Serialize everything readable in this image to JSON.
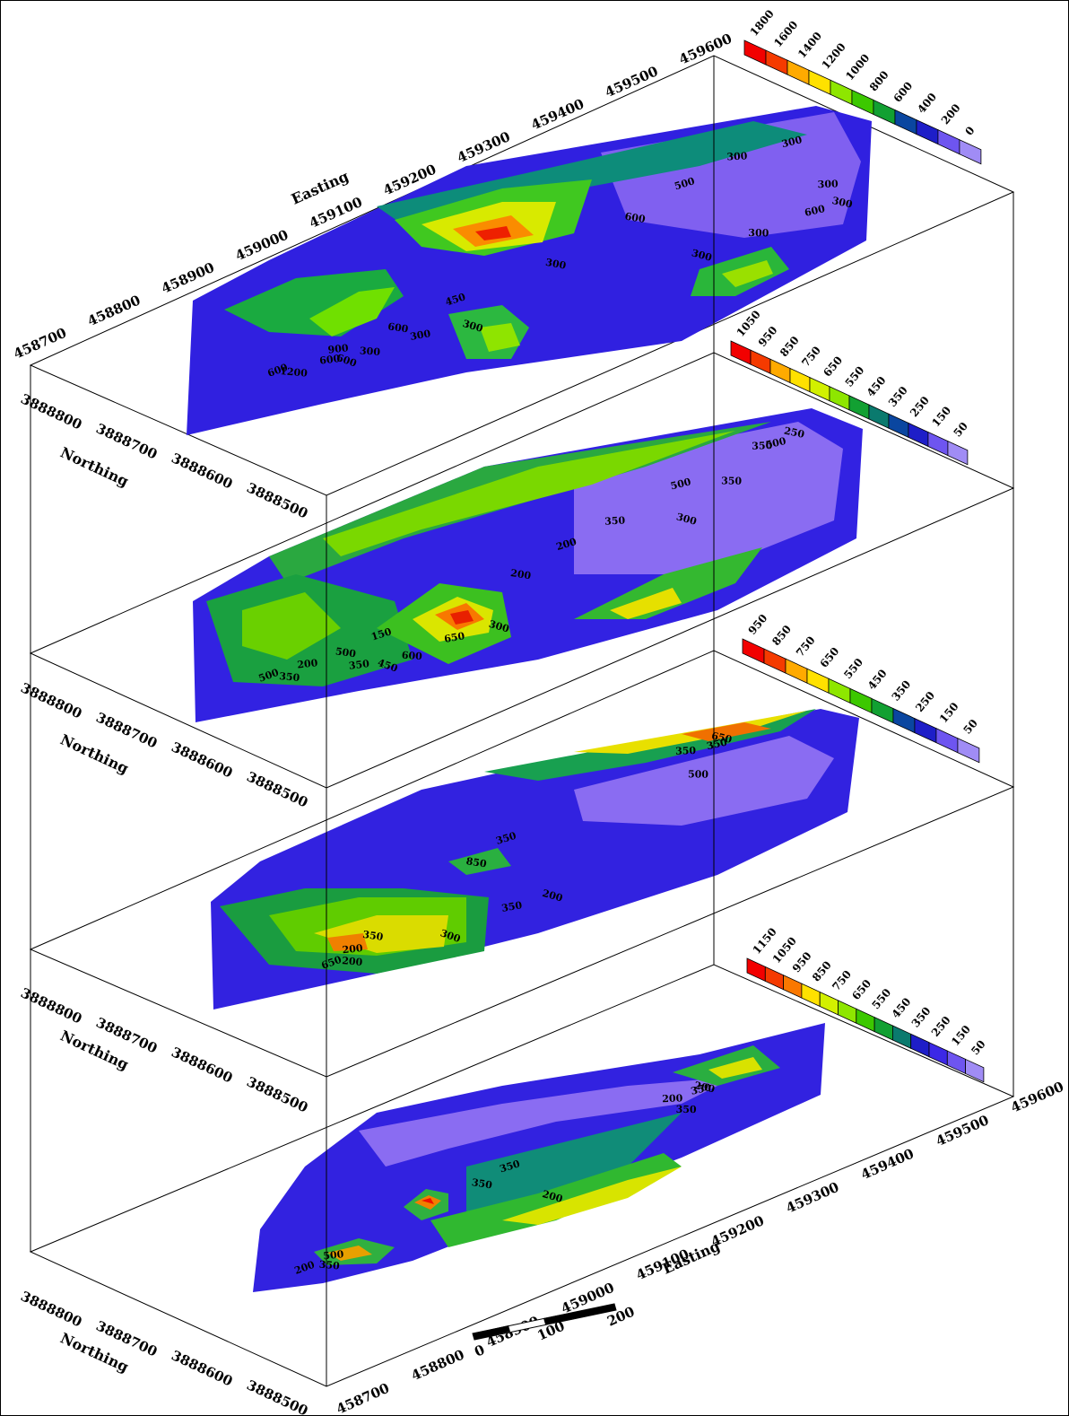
{
  "easting_ticks": [
    "458700",
    "458800",
    "458900",
    "459000",
    "459100",
    "459200",
    "459300",
    "459400",
    "459500",
    "459600"
  ],
  "northing_ticks": [
    "3888800",
    "3888700",
    "3888600",
    "3888500"
  ],
  "labels": {
    "easting": "Easting",
    "northing": "Northing"
  },
  "scale_bar": {
    "labels": [
      "0",
      "100",
      "200"
    ]
  },
  "colorbars": [
    {
      "labels": [
        "1800",
        "1600",
        "1400",
        "1200",
        "1000",
        "800",
        "600",
        "400",
        "200",
        "0"
      ]
    },
    {
      "labels": [
        "1050",
        "950",
        "850",
        "750",
        "650",
        "550",
        "450",
        "350",
        "250",
        "150",
        "50"
      ]
    },
    {
      "labels": [
        "950",
        "850",
        "750",
        "650",
        "550",
        "450",
        "350",
        "250",
        "150",
        "50"
      ]
    },
    {
      "labels": [
        "1150",
        "1050",
        "950",
        "850",
        "750",
        "650",
        "550",
        "450",
        "350",
        "250",
        "150",
        "50"
      ]
    }
  ],
  "colors": {
    "ramp": [
      "#f20000",
      "#f53a00",
      "#fa7800",
      "#ffaa00",
      "#ffe100",
      "#d2f000",
      "#8ee600",
      "#3cc800",
      "#12a032",
      "#0a7a6e",
      "#0a46a0",
      "#1e1ec8",
      "#3c28e6",
      "#6e55f0",
      "#a08cf5"
    ]
  },
  "slices": [
    {
      "contour_labels": [
        "600",
        "600",
        "300",
        "600",
        "300",
        "1200",
        "900",
        "500",
        "300",
        "300",
        "300",
        "600",
        "600",
        "300",
        "300",
        "300",
        "300",
        "600",
        "450",
        "300"
      ]
    },
    {
      "contour_labels": [
        "500",
        "200",
        "350",
        "500",
        "300",
        "350",
        "200",
        "200",
        "250",
        "350",
        "650",
        "450",
        "500",
        "350",
        "500",
        "300",
        "600",
        "350",
        "150"
      ]
    },
    {
      "contour_labels": [
        "650",
        "850",
        "350",
        "350",
        "200",
        "200",
        "200",
        "350",
        "650",
        "500",
        "350",
        "300",
        "350"
      ]
    },
    {
      "contour_labels": [
        "200",
        "350",
        "200",
        "350",
        "200",
        "350",
        "500",
        "350",
        "200",
        "350"
      ]
    }
  ]
}
